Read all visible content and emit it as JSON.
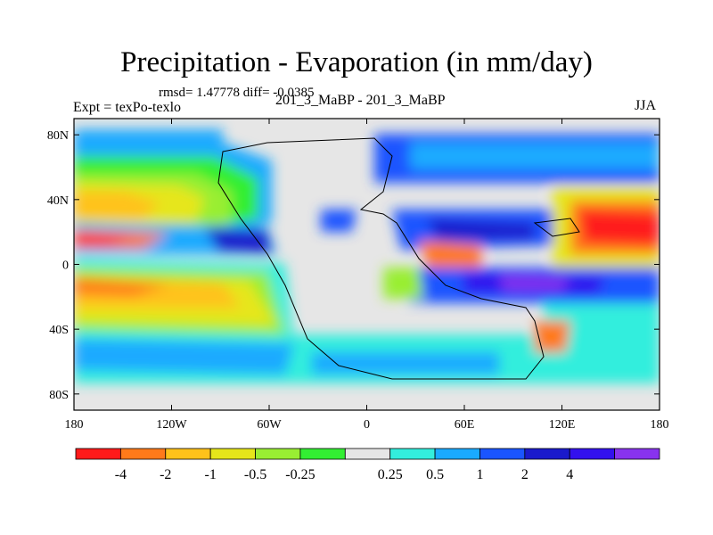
{
  "header": {
    "title": "Precipitation - Evaporation (in mm/day)",
    "stats": "rmsd= 1.47778 diff= -0.0385",
    "experiment": "Expt = texPo-texlo",
    "experiment_name": "201_3_MaBP - 201_3_MaBP",
    "season": "JJA"
  },
  "map": {
    "lon_ticks": [
      {
        "lon": -180,
        "label": "180"
      },
      {
        "lon": -120,
        "label": "120W"
      },
      {
        "lon": -60,
        "label": "60W"
      },
      {
        "lon": 0,
        "label": "0"
      },
      {
        "lon": 60,
        "label": "60E"
      },
      {
        "lon": 120,
        "label": "120E"
      },
      {
        "lon": 180,
        "label": "180"
      }
    ],
    "lat_ticks": [
      {
        "lat": 80,
        "label": "80N"
      },
      {
        "lat": 40,
        "label": "40N"
      },
      {
        "lat": 0,
        "label": "0"
      },
      {
        "lat": -40,
        "label": "40S"
      },
      {
        "lat": -80,
        "label": "80S"
      }
    ]
  },
  "colorbar": {
    "colors": [
      "#ff1a1a",
      "#ff7a1a",
      "#ffc21a",
      "#e6e61a",
      "#99ee33",
      "#33ee33",
      "#e6e6e6",
      "#33eedd",
      "#1aaaff",
      "#1a55ff",
      "#1a1acc",
      "#3311ee",
      "#8833ee"
    ],
    "labels": [
      "-4",
      "-2",
      "-1",
      "-0.5",
      "-0.25",
      "0.25",
      "0.5",
      "1",
      "2",
      "4"
    ],
    "label_positions": [
      1,
      2,
      3,
      4,
      5,
      7,
      8,
      9,
      10,
      11
    ]
  }
}
